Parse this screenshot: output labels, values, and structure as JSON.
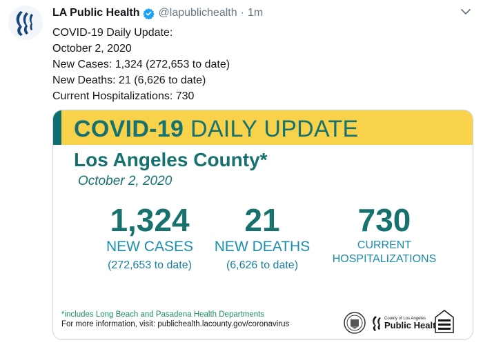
{
  "account": {
    "name": "LA Public Health",
    "handle": "@lapublichealth",
    "separator": "·",
    "time": "1m"
  },
  "tweet": {
    "lines": [
      "COVID-19 Daily Update:",
      "October 2, 2020",
      "New Cases: 1,324 (272,653 to date)",
      "New Deaths: 21 (6,626 to date)",
      "Current Hospitalizations: 730"
    ]
  },
  "card": {
    "title_bold": "COVID-19",
    "title_light": "DAILY UPDATE",
    "county": "Los Angeles County*",
    "date": "October 2, 2020",
    "stats": {
      "cases": {
        "value": "1,324",
        "label": "NEW CASES",
        "to_date": "(272,653 to date)"
      },
      "deaths": {
        "value": "21",
        "label": "NEW DEATHS",
        "to_date": "(6,626 to date)"
      },
      "hospitalizations": {
        "value": "730",
        "label_line1": "CURRENT",
        "label_line2": "HOSPITALIZATIONS"
      }
    },
    "footnote": "*includes Long Beach and Pasadena Health Departments",
    "more_info": "For more information, visit: publichealth.lacounty.gov/coronavirus",
    "logo": {
      "small": "County of Los Angeles",
      "big": "Public Health"
    }
  },
  "colors": {
    "brand_teal": "#16716f",
    "banner_yellow": "#f7d24a",
    "stat_blue": "#1a8eaa",
    "verified_blue": "#1da1f2"
  },
  "icons": {
    "avatar": "la-public-health-logo",
    "verified": "verified-badge-icon",
    "menu": "chevron-down-icon"
  }
}
